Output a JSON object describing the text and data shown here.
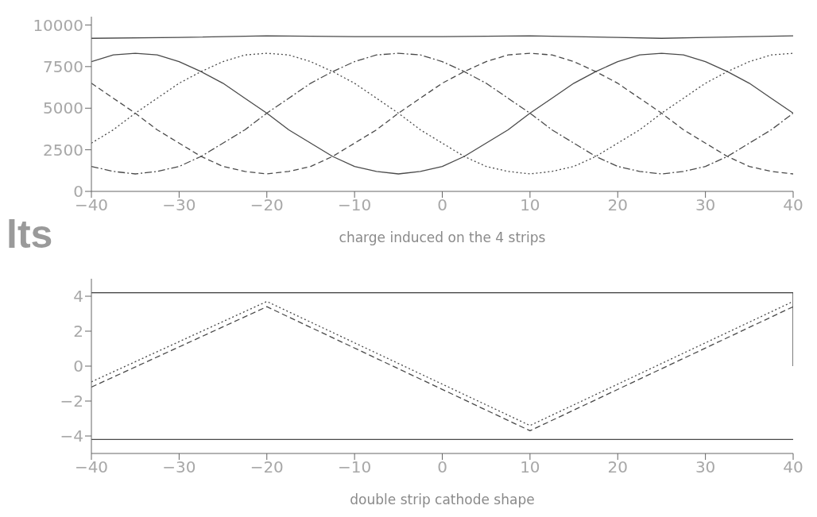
{
  "chart_data": [
    {
      "type": "line",
      "xlabel": "charge induced on the 4 strips",
      "annotations": [
        "lts"
      ],
      "xlim": [
        -40,
        40
      ],
      "xticks": [
        -40,
        -30,
        -20,
        -10,
        0,
        10,
        20,
        30,
        40
      ],
      "ylim": [
        0,
        10500
      ],
      "yticks": [
        0,
        2500,
        5000,
        7500,
        10000
      ],
      "marker": "none",
      "x": [
        -40,
        -37.5,
        -35,
        -32.5,
        -30,
        -27.5,
        -25,
        -22.5,
        -20,
        -17.5,
        -15,
        -12.5,
        -10,
        -7.5,
        -5,
        -2.5,
        0,
        2.5,
        5,
        7.5,
        10,
        12.5,
        15,
        17.5,
        20,
        22.5,
        25,
        27.5,
        30,
        32.5,
        35,
        37.5,
        40
      ],
      "series": [
        {
          "color": "#4a4a4a",
          "line_style": "solid",
          "x": [
            -40,
            -30,
            -20,
            -10,
            0,
            10,
            20,
            25,
            30,
            40
          ],
          "values": [
            9200,
            9250,
            9350,
            9300,
            9300,
            9350,
            9250,
            9200,
            9250,
            9350
          ]
        },
        {
          "color": "#4a4a4a",
          "line_style": "solid",
          "values": [
            7800,
            8200,
            8300,
            8200,
            7800,
            7200,
            6500,
            5600,
            4700,
            3700,
            2900,
            2100,
            1500,
            1200,
            1050,
            1200,
            1500,
            2100,
            2900,
            3700,
            4700,
            5600,
            6500,
            7200,
            7800,
            8200,
            8300,
            8200,
            7800,
            7200,
            6500,
            5600,
            4700
          ]
        },
        {
          "color": "#4a4a4a",
          "line_style": "dotted",
          "values": [
            2900,
            3700,
            4700,
            5600,
            6500,
            7200,
            7800,
            8200,
            8300,
            8200,
            7800,
            7200,
            6500,
            5600,
            4700,
            3700,
            2900,
            2100,
            1500,
            1200,
            1050,
            1200,
            1500,
            2100,
            2900,
            3700,
            4700,
            5600,
            6500,
            7200,
            7800,
            8200,
            8300
          ]
        },
        {
          "color": "#4a4a4a",
          "line_style": "dashdot",
          "values": [
            1500,
            1200,
            1050,
            1200,
            1500,
            2100,
            2900,
            3700,
            4700,
            5600,
            6500,
            7200,
            7800,
            8200,
            8300,
            8200,
            7800,
            7200,
            6500,
            5600,
            4700,
            3700,
            2900,
            2100,
            1500,
            1200,
            1050,
            1200,
            1500,
            2100,
            2900,
            3700,
            4700
          ]
        },
        {
          "color": "#4a4a4a",
          "line_style": "dashed",
          "values": [
            6500,
            5600,
            4700,
            3700,
            2900,
            2100,
            1500,
            1200,
            1050,
            1200,
            1500,
            2100,
            2900,
            3700,
            4700,
            5600,
            6500,
            7200,
            7800,
            8200,
            8300,
            8200,
            7800,
            7200,
            6500,
            5600,
            4700,
            3700,
            2900,
            2100,
            1500,
            1200,
            1050
          ]
        }
      ]
    },
    {
      "type": "line",
      "xlabel": "double strip cathode shape",
      "xlim": [
        -40,
        40
      ],
      "xticks": [
        -40,
        -30,
        -20,
        -10,
        0,
        10,
        20,
        30,
        40
      ],
      "ylim": [
        -5,
        5
      ],
      "yticks": [
        -4,
        -2,
        0,
        2,
        4
      ],
      "marker": "none",
      "series": [
        {
          "color": "#3a3a3a",
          "line_style": "solid",
          "x": [
            -40,
            40,
            40
          ],
          "values": [
            4.2,
            4.2,
            0
          ]
        },
        {
          "color": "#4a4a4a",
          "line_style": "solid",
          "x": [
            -40,
            40
          ],
          "values": [
            -4.2,
            -4.2
          ]
        },
        {
          "color": "#4a4a4a",
          "line_style": "dotted",
          "x": [
            -40,
            -20,
            10,
            40
          ],
          "values": [
            -0.9,
            3.7,
            -3.4,
            3.7
          ]
        },
        {
          "color": "#4a4a4a",
          "line_style": "dashed",
          "x": [
            -40,
            -20,
            10,
            40
          ],
          "values": [
            -1.2,
            3.4,
            -3.7,
            3.4
          ]
        }
      ]
    }
  ]
}
